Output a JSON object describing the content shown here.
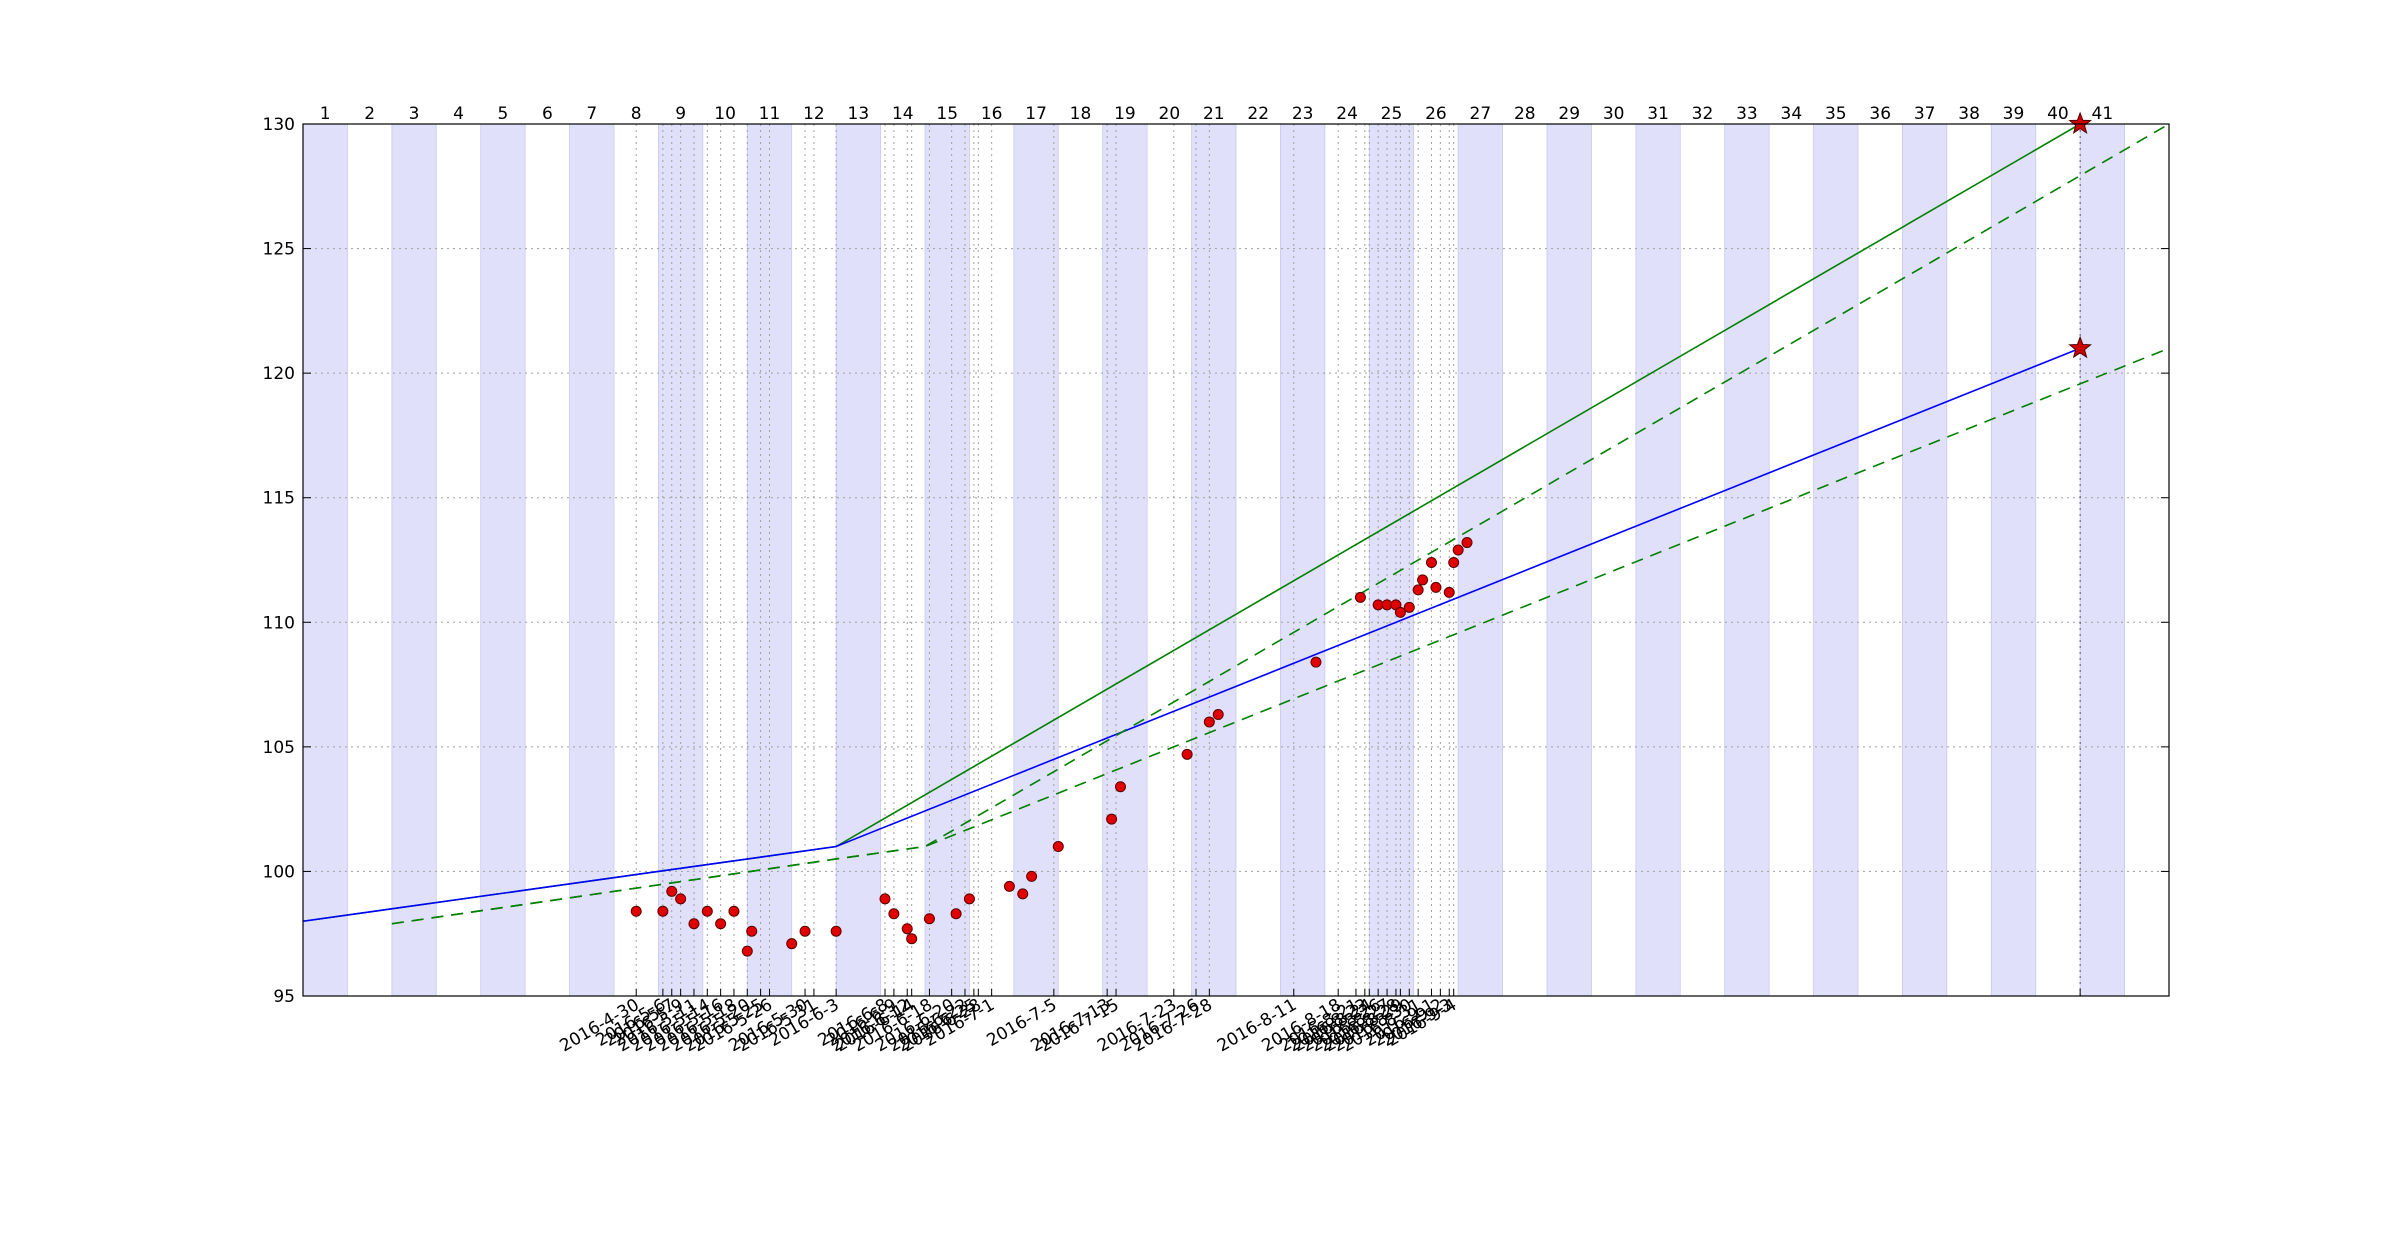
{
  "chart_data": {
    "type": "scatter",
    "title": "",
    "xlabel": "",
    "ylabel": "",
    "xlim": [
      0,
      42
    ],
    "ylim": [
      95,
      130
    ],
    "grid": true,
    "y_ticks": [
      95,
      100,
      105,
      110,
      115,
      120,
      125,
      130
    ],
    "week_labels": [
      "1",
      "2",
      "3",
      "4",
      "5",
      "6",
      "7",
      "8",
      "9",
      "10",
      "11",
      "12",
      "13",
      "14",
      "15",
      "16",
      "17",
      "18",
      "19",
      "20",
      "21",
      "22",
      "23",
      "24",
      "25",
      "26",
      "27",
      "28",
      "29",
      "30",
      "31",
      "32",
      "33",
      "34",
      "35",
      "36",
      "37",
      "38",
      "39",
      "40",
      "41"
    ],
    "shaded_weeks": [
      1,
      3,
      5,
      7,
      9,
      11,
      13,
      15,
      17,
      19,
      21,
      23,
      25,
      27,
      29,
      31,
      33,
      35,
      37,
      39,
      41
    ],
    "date_markers": [
      {
        "x": 7.5,
        "label": "2016-4-30"
      },
      {
        "x": 8.1,
        "label": "2016-5-6"
      },
      {
        "x": 8.3,
        "label": "2016-5-7"
      },
      {
        "x": 8.5,
        "label": "2016-5-9"
      },
      {
        "x": 8.8,
        "label": "2016-5-11"
      },
      {
        "x": 9.1,
        "label": "2016-5-14"
      },
      {
        "x": 9.4,
        "label": "2016-5-16"
      },
      {
        "x": 9.7,
        "label": "2016-5-18"
      },
      {
        "x": 10.0,
        "label": "2016-5-20"
      },
      {
        "x": 10.3,
        "label": "2016-5-25"
      },
      {
        "x": 10.5,
        "label": "2016-5-26"
      },
      {
        "x": 11.3,
        "label": "2016-5-30"
      },
      {
        "x": 11.5,
        "label": "2016-5-31"
      },
      {
        "x": 12.0,
        "label": "2016-6-3"
      },
      {
        "x": 13.1,
        "label": "2016-6-8"
      },
      {
        "x": 13.3,
        "label": "2016-6-9"
      },
      {
        "x": 13.6,
        "label": "2016-6-12"
      },
      {
        "x": 13.7,
        "label": "2016-6-14"
      },
      {
        "x": 14.1,
        "label": "2016-6-18"
      },
      {
        "x": 14.6,
        "label": "2016-6-20"
      },
      {
        "x": 14.9,
        "label": "2016-6-22"
      },
      {
        "x": 15.1,
        "label": "2016-6-25"
      },
      {
        "x": 15.2,
        "label": "2016-6-28"
      },
      {
        "x": 15.5,
        "label": "2016-7-1"
      },
      {
        "x": 16.9,
        "label": "2016-7-5"
      },
      {
        "x": 18.1,
        "label": "2016-7-13"
      },
      {
        "x": 18.3,
        "label": "2016-7-15"
      },
      {
        "x": 19.6,
        "label": "2016-7-23"
      },
      {
        "x": 20.1,
        "label": "2016-7-26"
      },
      {
        "x": 20.4,
        "label": "2016-7-28"
      },
      {
        "x": 22.3,
        "label": "2016-8-11"
      },
      {
        "x": 23.3,
        "label": "2016-8-18"
      },
      {
        "x": 23.7,
        "label": "2016-8-21"
      },
      {
        "x": 23.9,
        "label": "2016-8-23"
      },
      {
        "x": 24.0,
        "label": "2016-8-24"
      },
      {
        "x": 24.2,
        "label": "2016-8-26"
      },
      {
        "x": 24.4,
        "label": "2016-8-27"
      },
      {
        "x": 24.6,
        "label": "2016-8-28"
      },
      {
        "x": 24.7,
        "label": "2016-8-29"
      },
      {
        "x": 24.9,
        "label": "2016-8-30"
      },
      {
        "x": 25.1,
        "label": "2016-8-31"
      },
      {
        "x": 25.4,
        "label": "2016-9-1"
      },
      {
        "x": 25.6,
        "label": "2016-9-2"
      },
      {
        "x": 25.8,
        "label": "2016-9-3"
      },
      {
        "x": 25.9,
        "label": "2016-9-4"
      }
    ],
    "series": [
      {
        "values": [
          [
            7.5,
            98.4
          ],
          [
            8.1,
            98.4
          ],
          [
            8.3,
            99.2
          ],
          [
            8.5,
            98.9
          ],
          [
            8.8,
            97.9
          ],
          [
            9.1,
            98.4
          ],
          [
            9.4,
            97.9
          ],
          [
            9.7,
            98.4
          ],
          [
            10.0,
            96.8
          ],
          [
            10.1,
            97.6
          ],
          [
            11.0,
            97.1
          ],
          [
            11.3,
            97.6
          ],
          [
            12.0,
            97.6
          ],
          [
            13.1,
            98.9
          ],
          [
            13.3,
            98.3
          ],
          [
            13.6,
            97.7
          ],
          [
            13.7,
            97.3
          ],
          [
            14.1,
            98.1
          ],
          [
            14.7,
            98.3
          ],
          [
            15.0,
            98.9
          ],
          [
            15.9,
            99.4
          ],
          [
            16.2,
            99.1
          ],
          [
            16.4,
            99.8
          ],
          [
            17.0,
            101.0
          ],
          [
            18.2,
            102.1
          ],
          [
            18.4,
            103.4
          ],
          [
            19.9,
            104.7
          ],
          [
            20.4,
            106.0
          ],
          [
            20.6,
            106.3
          ],
          [
            22.8,
            108.4
          ],
          [
            23.8,
            111.0
          ],
          [
            24.2,
            110.7
          ],
          [
            24.4,
            110.7
          ],
          [
            24.6,
            110.7
          ],
          [
            24.7,
            110.4
          ],
          [
            24.9,
            110.6
          ],
          [
            25.1,
            111.3
          ],
          [
            25.2,
            111.7
          ],
          [
            25.4,
            112.4
          ],
          [
            25.5,
            111.4
          ],
          [
            25.8,
            111.2
          ],
          [
            25.9,
            112.4
          ],
          [
            26.0,
            112.9
          ],
          [
            26.2,
            113.2
          ]
        ],
        "color": "#ff0000"
      },
      {
        "values": [
          [
            0,
            98
          ],
          [
            12,
            101
          ],
          [
            40,
            130
          ]
        ],
        "color": "#008000"
      },
      {
        "values": [
          [
            0,
            98
          ],
          [
            12,
            101
          ],
          [
            40,
            121
          ]
        ],
        "color": "#0000ff"
      },
      {
        "values": [
          [
            2,
            97.9
          ],
          [
            12,
            100.5
          ],
          [
            14,
            101
          ],
          [
            42,
            130
          ]
        ],
        "color": "#008000"
      },
      {
        "values": [
          [
            2,
            97.9
          ],
          [
            12,
            100.5
          ],
          [
            14,
            101
          ],
          [
            42,
            121
          ]
        ],
        "color": "#008000"
      }
    ],
    "targets": [
      [
        40,
        130
      ],
      [
        40,
        121
      ]
    ],
    "colors": {
      "shade": "#e0e0fb",
      "marker_fill": "#e00000",
      "marker_edge": "#5a0000",
      "grid": "#a0a0a0",
      "week41_line": "#505060"
    }
  }
}
